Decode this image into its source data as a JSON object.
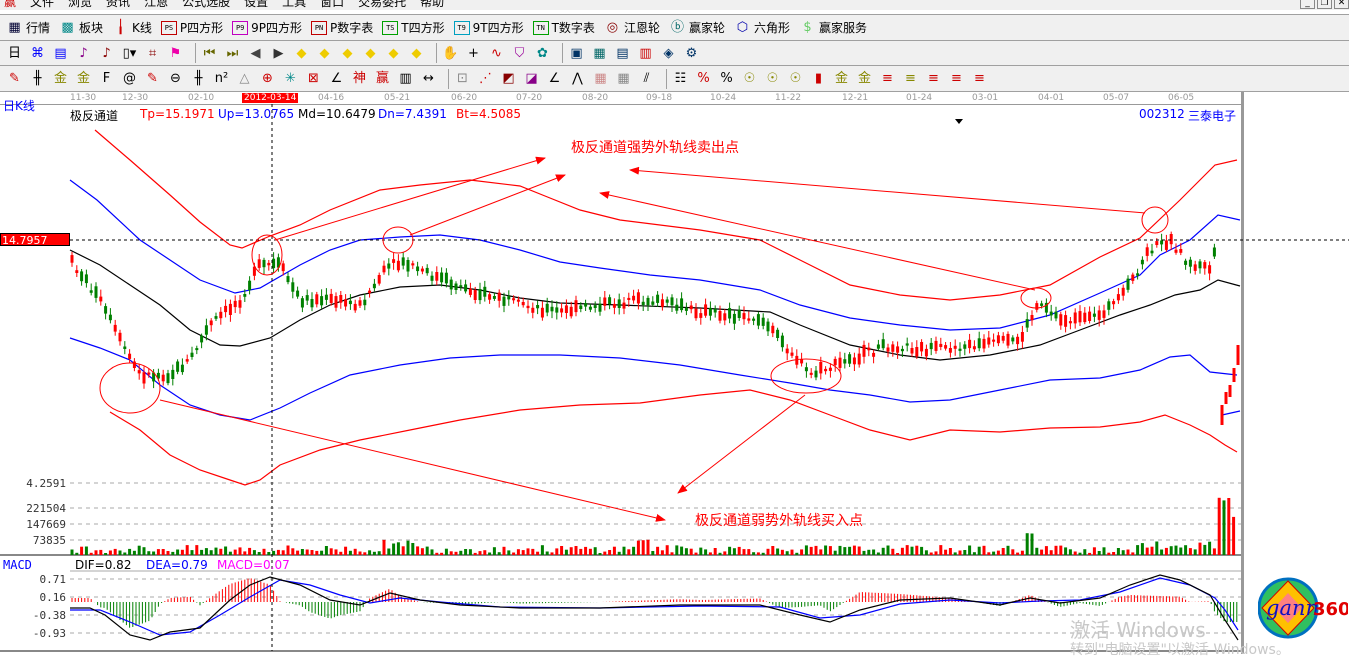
{
  "menu": [
    "文件",
    "浏览",
    "资讯",
    "江恩",
    "公式选股",
    "设置",
    "工具",
    "窗口",
    "交易委托",
    "帮助"
  ],
  "toolbar1": [
    {
      "label": "行情",
      "icon": "grid-icon"
    },
    {
      "label": "板块",
      "icon": "blocks-icon"
    },
    {
      "label": "K线",
      "icon": "candles-icon"
    },
    {
      "label": "P四方形",
      "icon": "ps-icon",
      "tag": "PS",
      "color": "#c00000"
    },
    {
      "label": "9P四方形",
      "icon": "p9-icon",
      "tag": "P9",
      "color": "#c000c0"
    },
    {
      "label": "P数字表",
      "icon": "pn-icon",
      "tag": "PN",
      "color": "#c00000"
    },
    {
      "label": "T四方形",
      "icon": "ts-icon",
      "tag": "TS",
      "color": "#00a000"
    },
    {
      "label": "9T四方形",
      "icon": "t9-icon",
      "tag": "T9",
      "color": "#00a0c0"
    },
    {
      "label": "T数字表",
      "icon": "tn-icon",
      "tag": "TN",
      "color": "#00a000"
    },
    {
      "label": "江恩轮",
      "icon": "gann-wheel-icon"
    },
    {
      "label": "赢家轮",
      "icon": "big-wheel-icon"
    },
    {
      "label": "六角形",
      "icon": "hexagon-icon"
    },
    {
      "label": "赢家服务",
      "icon": "dollar-icon"
    }
  ],
  "period": "日",
  "date_axis": {
    "labels": [
      "11-30",
      "12-30",
      "02-10",
      "04-16",
      "05-21",
      "06-20",
      "07-20",
      "08-20",
      "09-18",
      "10-24",
      "11-22",
      "12-21",
      "01-24",
      "03-01",
      "04-01",
      "05-07",
      "06-05"
    ],
    "selected": "2012-03-14"
  },
  "chart_label": "日K线",
  "indicator": {
    "name": "极反通道",
    "tp": "Tp=15.1971",
    "up": "Up=13.0765",
    "md": "Md=10.6479",
    "dn": "Dn=7.4391",
    "bt": "Bt=4.5085"
  },
  "stock": {
    "code": "002312",
    "name": "三泰电子"
  },
  "price_axis": {
    "cursor_price": "14.7957",
    "low": "4.2591"
  },
  "volume_axis": [
    "221504",
    "147669",
    "73835"
  ],
  "macd": {
    "title": "MACD",
    "dif": "DIF=0.82",
    "dea": "DEA=0.79",
    "macd": "MACD=0.07",
    "axis": [
      "0.71",
      "0.16",
      "-0.38",
      "-0.93"
    ]
  },
  "annotations": {
    "sell": "极反通道强势外轨线卖出点",
    "buy": "极反通道弱势外轨线买入点"
  },
  "watermark": {
    "line1": "激活 Windows",
    "line2": "转到\"电脑设置\"以激活 Windows。"
  },
  "logo": {
    "text": "gann360"
  },
  "colors": {
    "up": "#ff0000",
    "down": "#008000",
    "tp": "#ff0000",
    "upline": "#0000ff",
    "md": "#000000",
    "dn": "#0000ff",
    "bt": "#ff0000"
  }
}
